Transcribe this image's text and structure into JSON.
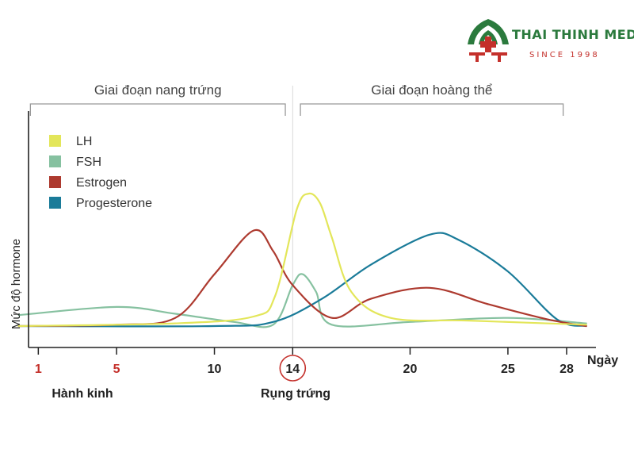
{
  "brand": {
    "name": "THAI THINH MEDIC",
    "tagline": "SINCE 1998"
  },
  "colors": {
    "LH": "#e3e65a",
    "FSH": "#86c1a0",
    "Estrogen": "#ad3a2f",
    "Progesterone": "#1a7b99",
    "phase_bracket": "#999999",
    "axis": "#222222",
    "highlight_tick": "#c4302b",
    "brand_green": "#2b7a3d",
    "brand_red": "#c4302b"
  },
  "chart_data": {
    "type": "line",
    "title": "",
    "xlabel": "Ngày",
    "ylabel": "Mức độ hormone",
    "xlim": [
      0.5,
      29.5
    ],
    "ylim": [
      0,
      100
    ],
    "grid": false,
    "legend_position": "top-left",
    "x_ticks": [
      {
        "value": 1,
        "label": "1",
        "highlight": "red"
      },
      {
        "value": 5,
        "label": "5",
        "highlight": "red"
      },
      {
        "value": 10,
        "label": "10",
        "highlight": "none"
      },
      {
        "value": 14,
        "label": "14",
        "highlight": "circle"
      },
      {
        "value": 20,
        "label": "20",
        "highlight": "none"
      },
      {
        "value": 25,
        "label": "25",
        "highlight": "none"
      },
      {
        "value": 28,
        "label": "28",
        "highlight": "none"
      }
    ],
    "annotations": [
      {
        "label": "Hành kinh",
        "x": 5
      },
      {
        "label": "Rụng trứng",
        "x": 14
      }
    ],
    "phases": [
      {
        "label": "Giai đoạn nang trứng",
        "x_start": 1,
        "x_end": 13.3
      },
      {
        "label": "Giai đoạn hoàng thể",
        "x_start": 14.8,
        "x_end": 27.5
      }
    ],
    "ovulation_line_x": 14,
    "series": [
      {
        "name": "LH",
        "points": [
          [
            0,
            0
          ],
          [
            8,
            2
          ],
          [
            12,
            7
          ],
          [
            13.1,
            22
          ],
          [
            14.2,
            85
          ],
          [
            14.8,
            97
          ],
          [
            15.4,
            90
          ],
          [
            16,
            65
          ],
          [
            17,
            25
          ],
          [
            19,
            6
          ],
          [
            23,
            4
          ],
          [
            29,
            1
          ]
        ]
      },
      {
        "name": "FSH",
        "points": [
          [
            0,
            8
          ],
          [
            5,
            14
          ],
          [
            8,
            9
          ],
          [
            11,
            3
          ],
          [
            13,
            1
          ],
          [
            14,
            30
          ],
          [
            14.5,
            38
          ],
          [
            15.2,
            25
          ],
          [
            16,
            1
          ],
          [
            20,
            3
          ],
          [
            25,
            6
          ],
          [
            29,
            2
          ]
        ]
      },
      {
        "name": "Estrogen",
        "points": [
          [
            0,
            0
          ],
          [
            5,
            1
          ],
          [
            8,
            6
          ],
          [
            10,
            38
          ],
          [
            12,
            70
          ],
          [
            13,
            55
          ],
          [
            14,
            30
          ],
          [
            16,
            6
          ],
          [
            18,
            20
          ],
          [
            21,
            28
          ],
          [
            24,
            16
          ],
          [
            27,
            5
          ],
          [
            29,
            0
          ]
        ]
      },
      {
        "name": "Progesterone",
        "points": [
          [
            0,
            0
          ],
          [
            10,
            0
          ],
          [
            13,
            3
          ],
          [
            15.5,
            20
          ],
          [
            18,
            45
          ],
          [
            21,
            67
          ],
          [
            22.5,
            63
          ],
          [
            25,
            40
          ],
          [
            27.5,
            5
          ],
          [
            29,
            0
          ]
        ]
      }
    ]
  }
}
